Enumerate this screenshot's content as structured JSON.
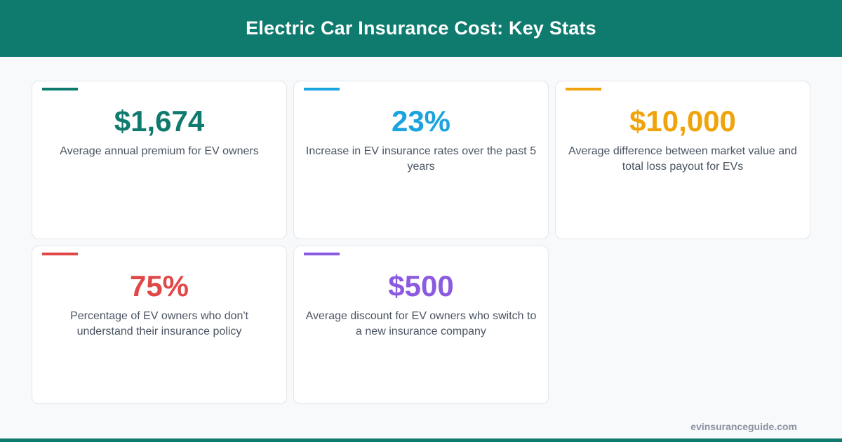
{
  "header": {
    "title": "Electric Car Insurance Cost: Key Stats"
  },
  "stats": [
    {
      "value": "$1,674",
      "description": "Average annual premium for EV owners",
      "color": "#0f7a6e"
    },
    {
      "value": "23%",
      "description": "Increase in EV insurance rates over the past 5 years",
      "color": "#1aa3df"
    },
    {
      "value": "$10,000",
      "description": "Average difference between market value and total loss payout for EVs",
      "color": "#f0a30a"
    },
    {
      "value": "75%",
      "description": "Percentage of EV owners who don't understand their insurance policy",
      "color": "#e04848"
    },
    {
      "value": "$500",
      "description": "Average discount for EV owners who switch to a new insurance company",
      "color": "#8b5ae0"
    }
  ],
  "footer": {
    "site": "evinsuranceguide.com"
  },
  "colors": {
    "brand": "#0f7a6e"
  }
}
